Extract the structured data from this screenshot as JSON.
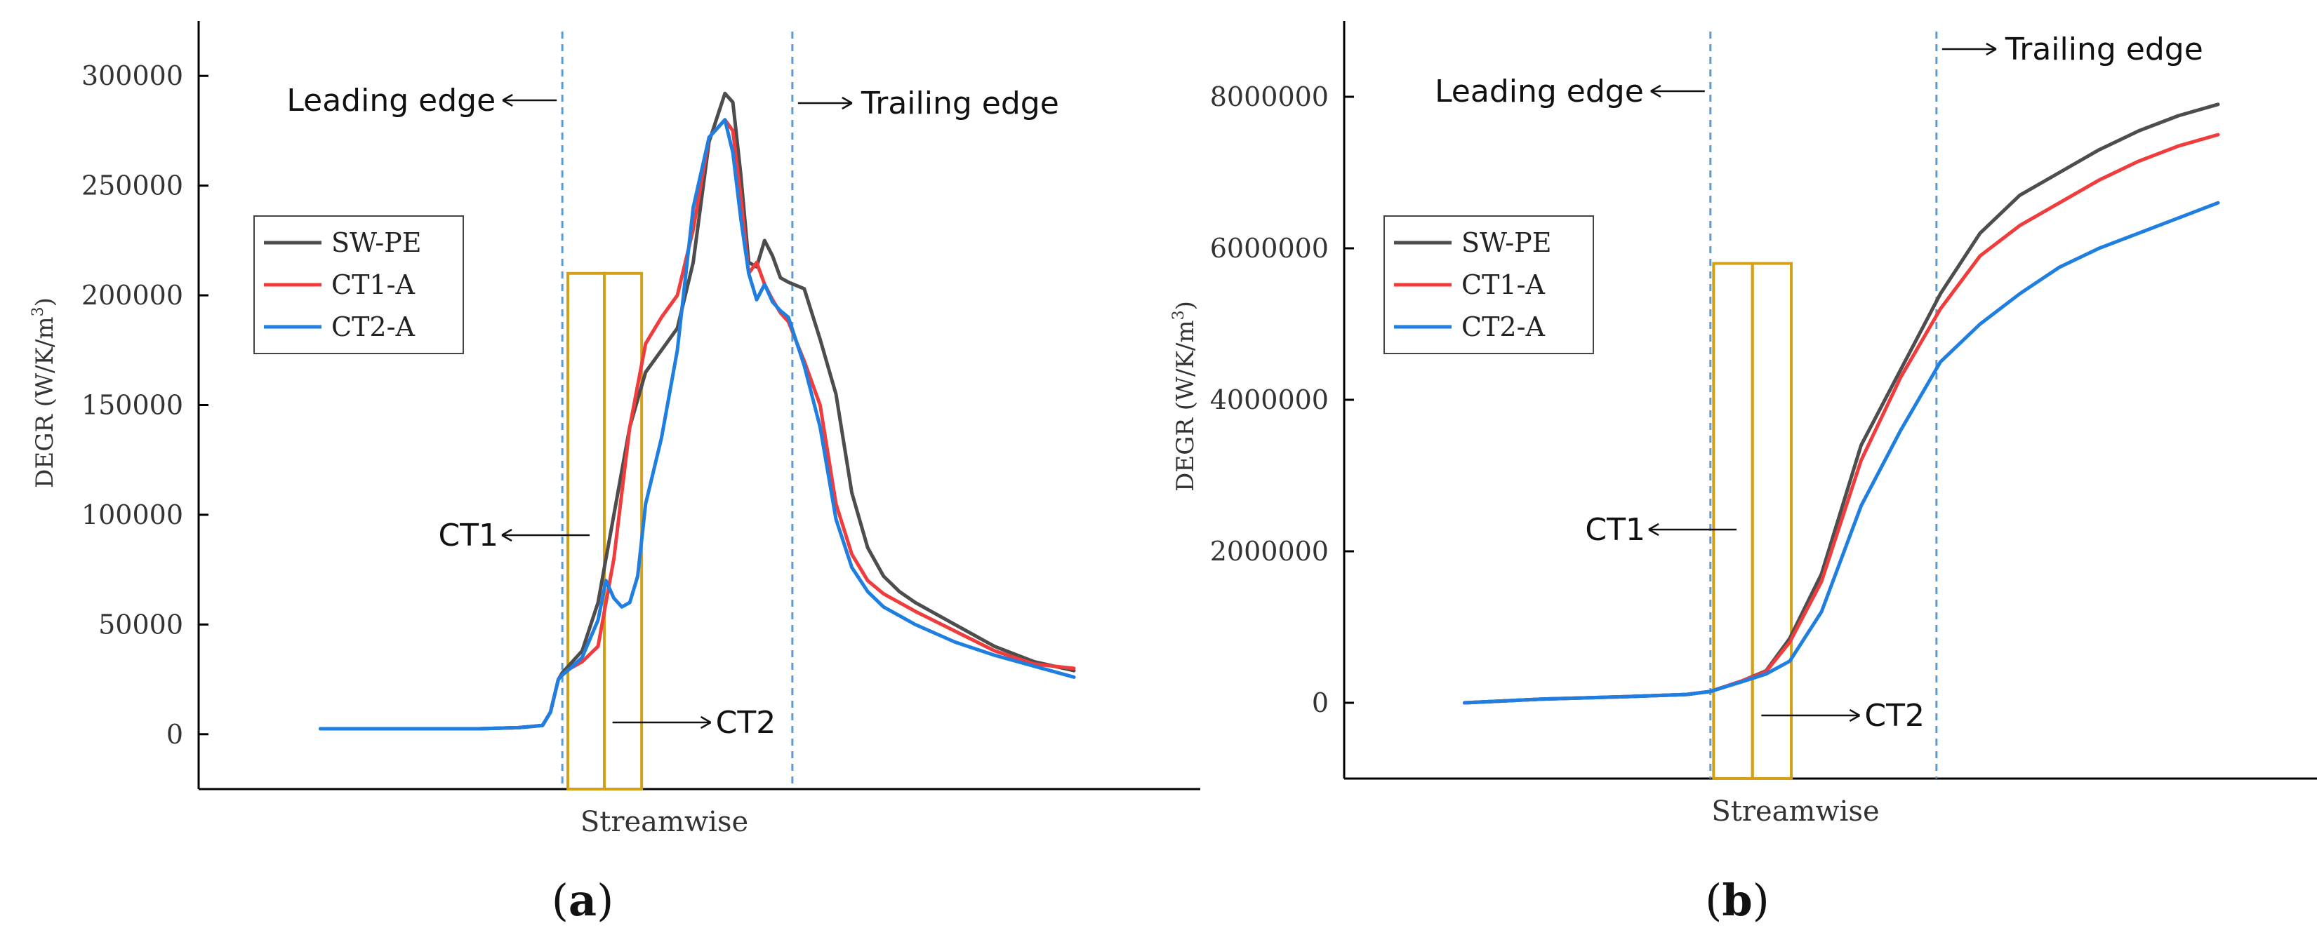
{
  "chart_data": [
    {
      "type": "line",
      "panel": "a",
      "caption_letter": "a",
      "xlabel": "Streamwise",
      "ylabel": "DEGR (W/K/m",
      "ylabel_sup": "3",
      "ylabel_close": ")",
      "xlim": [
        0,
        100
      ],
      "ylim": [
        -25000,
        325000
      ],
      "yticks": [
        0,
        50000,
        100000,
        150000,
        200000,
        250000,
        300000
      ],
      "ytick_labels": [
        "0",
        "50000",
        "100000",
        "150000",
        "200000",
        "250000",
        "300000"
      ],
      "legend_position": "upper-left",
      "annotations": {
        "leading_edge": {
          "label": "Leading edge",
          "x": 35.5
        },
        "trailing_edge": {
          "label": "Trailing edge",
          "x": 64.5
        },
        "ct1": {
          "label": "CT1",
          "x_start": 36.2,
          "x_end": 40.8,
          "top": 210000
        },
        "ct2": {
          "label": "CT2",
          "x_start": 40.8,
          "x_end": 45.5,
          "top": 210000
        }
      },
      "series": [
        {
          "name": "SW-PE",
          "color": "#4d4d4d",
          "x": [
            5,
            15,
            25,
            30,
            33,
            34,
            35,
            35.5,
            36.5,
            38,
            40,
            42,
            44,
            46,
            48,
            50,
            52,
            54,
            56,
            57,
            58,
            59,
            60,
            61,
            62,
            63,
            64,
            66,
            68,
            70,
            72,
            74,
            76,
            78,
            80,
            85,
            90,
            95,
            100
          ],
          "values": [
            2500,
            2500,
            2500,
            3000,
            4000,
            10000,
            25000,
            28000,
            32000,
            38000,
            60000,
            100000,
            140000,
            165000,
            175000,
            185000,
            215000,
            270000,
            292000,
            288000,
            255000,
            215000,
            213000,
            225000,
            218000,
            208000,
            206000,
            203000,
            180000,
            155000,
            110000,
            85000,
            72000,
            65000,
            60000,
            50000,
            40000,
            33000,
            29000
          ]
        },
        {
          "name": "CT1-A",
          "color": "#f03c3c",
          "x": [
            5,
            15,
            25,
            30,
            33,
            34,
            35,
            35.5,
            36.5,
            38,
            40,
            42,
            44,
            46,
            48,
            50,
            52,
            54,
            56,
            57,
            58,
            59,
            60,
            61,
            62,
            63,
            64,
            66,
            68,
            70,
            72,
            74,
            76,
            78,
            80,
            85,
            90,
            95,
            100
          ],
          "values": [
            2500,
            2500,
            2500,
            3000,
            4000,
            10000,
            25000,
            27000,
            30000,
            33000,
            40000,
            80000,
            140000,
            178000,
            190000,
            200000,
            230000,
            272000,
            280000,
            275000,
            245000,
            210000,
            215000,
            205000,
            198000,
            192000,
            188000,
            170000,
            150000,
            105000,
            82000,
            70000,
            64000,
            60000,
            56000,
            47000,
            38000,
            32000,
            30000
          ]
        },
        {
          "name": "CT2-A",
          "color": "#1f7fe0",
          "x": [
            5,
            15,
            25,
            30,
            33,
            34,
            35,
            35.5,
            36.5,
            38,
            40,
            41,
            42,
            43,
            44,
            45,
            46,
            47,
            48,
            50,
            52,
            54,
            56,
            57,
            58,
            59,
            60,
            61,
            62,
            63,
            64,
            66,
            68,
            70,
            72,
            74,
            76,
            78,
            80,
            85,
            90,
            95,
            100
          ],
          "values": [
            2500,
            2500,
            2500,
            3000,
            4000,
            10000,
            25000,
            27000,
            30000,
            35000,
            52000,
            70000,
            62000,
            58000,
            60000,
            72000,
            105000,
            120000,
            135000,
            175000,
            240000,
            272000,
            280000,
            265000,
            235000,
            210000,
            198000,
            205000,
            197000,
            193000,
            190000,
            168000,
            140000,
            98000,
            76000,
            65000,
            58000,
            54000,
            50000,
            42000,
            36000,
            31000,
            26000
          ]
        }
      ]
    },
    {
      "type": "line",
      "panel": "b",
      "caption_letter": "b",
      "xlabel": "Streamwise",
      "ylabel": "DEGR (W/K/m",
      "ylabel_sup": "3",
      "ylabel_close": ")",
      "xlim": [
        0,
        100
      ],
      "ylim": [
        -1000000,
        9000000
      ],
      "yticks": [
        0,
        2000000,
        4000000,
        6000000,
        8000000
      ],
      "ytick_labels": [
        "0",
        "2000000",
        "4000000",
        "6000000",
        "8000000"
      ],
      "legend_position": "upper-left",
      "annotations": {
        "leading_edge": {
          "label": "Leading edge",
          "x": 36
        },
        "trailing_edge": {
          "label": "Trailing edge",
          "x": 64.5
        },
        "ct1": {
          "label": "CT1",
          "x_start": 36.4,
          "x_end": 41.3,
          "top": 5800000
        },
        "ct2": {
          "label": "CT2",
          "x_start": 41.3,
          "x_end": 46.2,
          "top": 5800000
        }
      },
      "series": [
        {
          "name": "SW-PE",
          "color": "#4d4d4d",
          "x": [
            5,
            15,
            25,
            33,
            36,
            40,
            43,
            46,
            50,
            55,
            60,
            65,
            70,
            75,
            80,
            85,
            90,
            95,
            100
          ],
          "values": [
            0,
            50000,
            80000,
            110000,
            150000,
            290000,
            420000,
            850000,
            1700000,
            3400000,
            4400000,
            5400000,
            6200000,
            6700000,
            7000000,
            7300000,
            7550000,
            7750000,
            7900000
          ]
        },
        {
          "name": "CT1-A",
          "color": "#f03c3c",
          "x": [
            5,
            15,
            25,
            33,
            36,
            40,
            43,
            46,
            50,
            55,
            60,
            65,
            70,
            75,
            80,
            85,
            90,
            95,
            100
          ],
          "values": [
            0,
            50000,
            80000,
            110000,
            150000,
            290000,
            410000,
            800000,
            1600000,
            3200000,
            4300000,
            5200000,
            5900000,
            6300000,
            6600000,
            6900000,
            7150000,
            7350000,
            7500000
          ]
        },
        {
          "name": "CT2-A",
          "color": "#1f7fe0",
          "x": [
            5,
            15,
            25,
            33,
            36,
            40,
            43,
            46,
            50,
            55,
            60,
            65,
            70,
            75,
            80,
            85,
            90,
            95,
            100
          ],
          "values": [
            0,
            50000,
            80000,
            110000,
            150000,
            280000,
            380000,
            550000,
            1200000,
            2600000,
            3600000,
            4500000,
            5000000,
            5400000,
            5750000,
            6000000,
            6200000,
            6400000,
            6600000
          ]
        }
      ]
    }
  ],
  "captions": [
    {
      "open": "(",
      "letter": "a",
      "close": ")"
    },
    {
      "open": "(",
      "letter": "b",
      "close": ")"
    }
  ]
}
